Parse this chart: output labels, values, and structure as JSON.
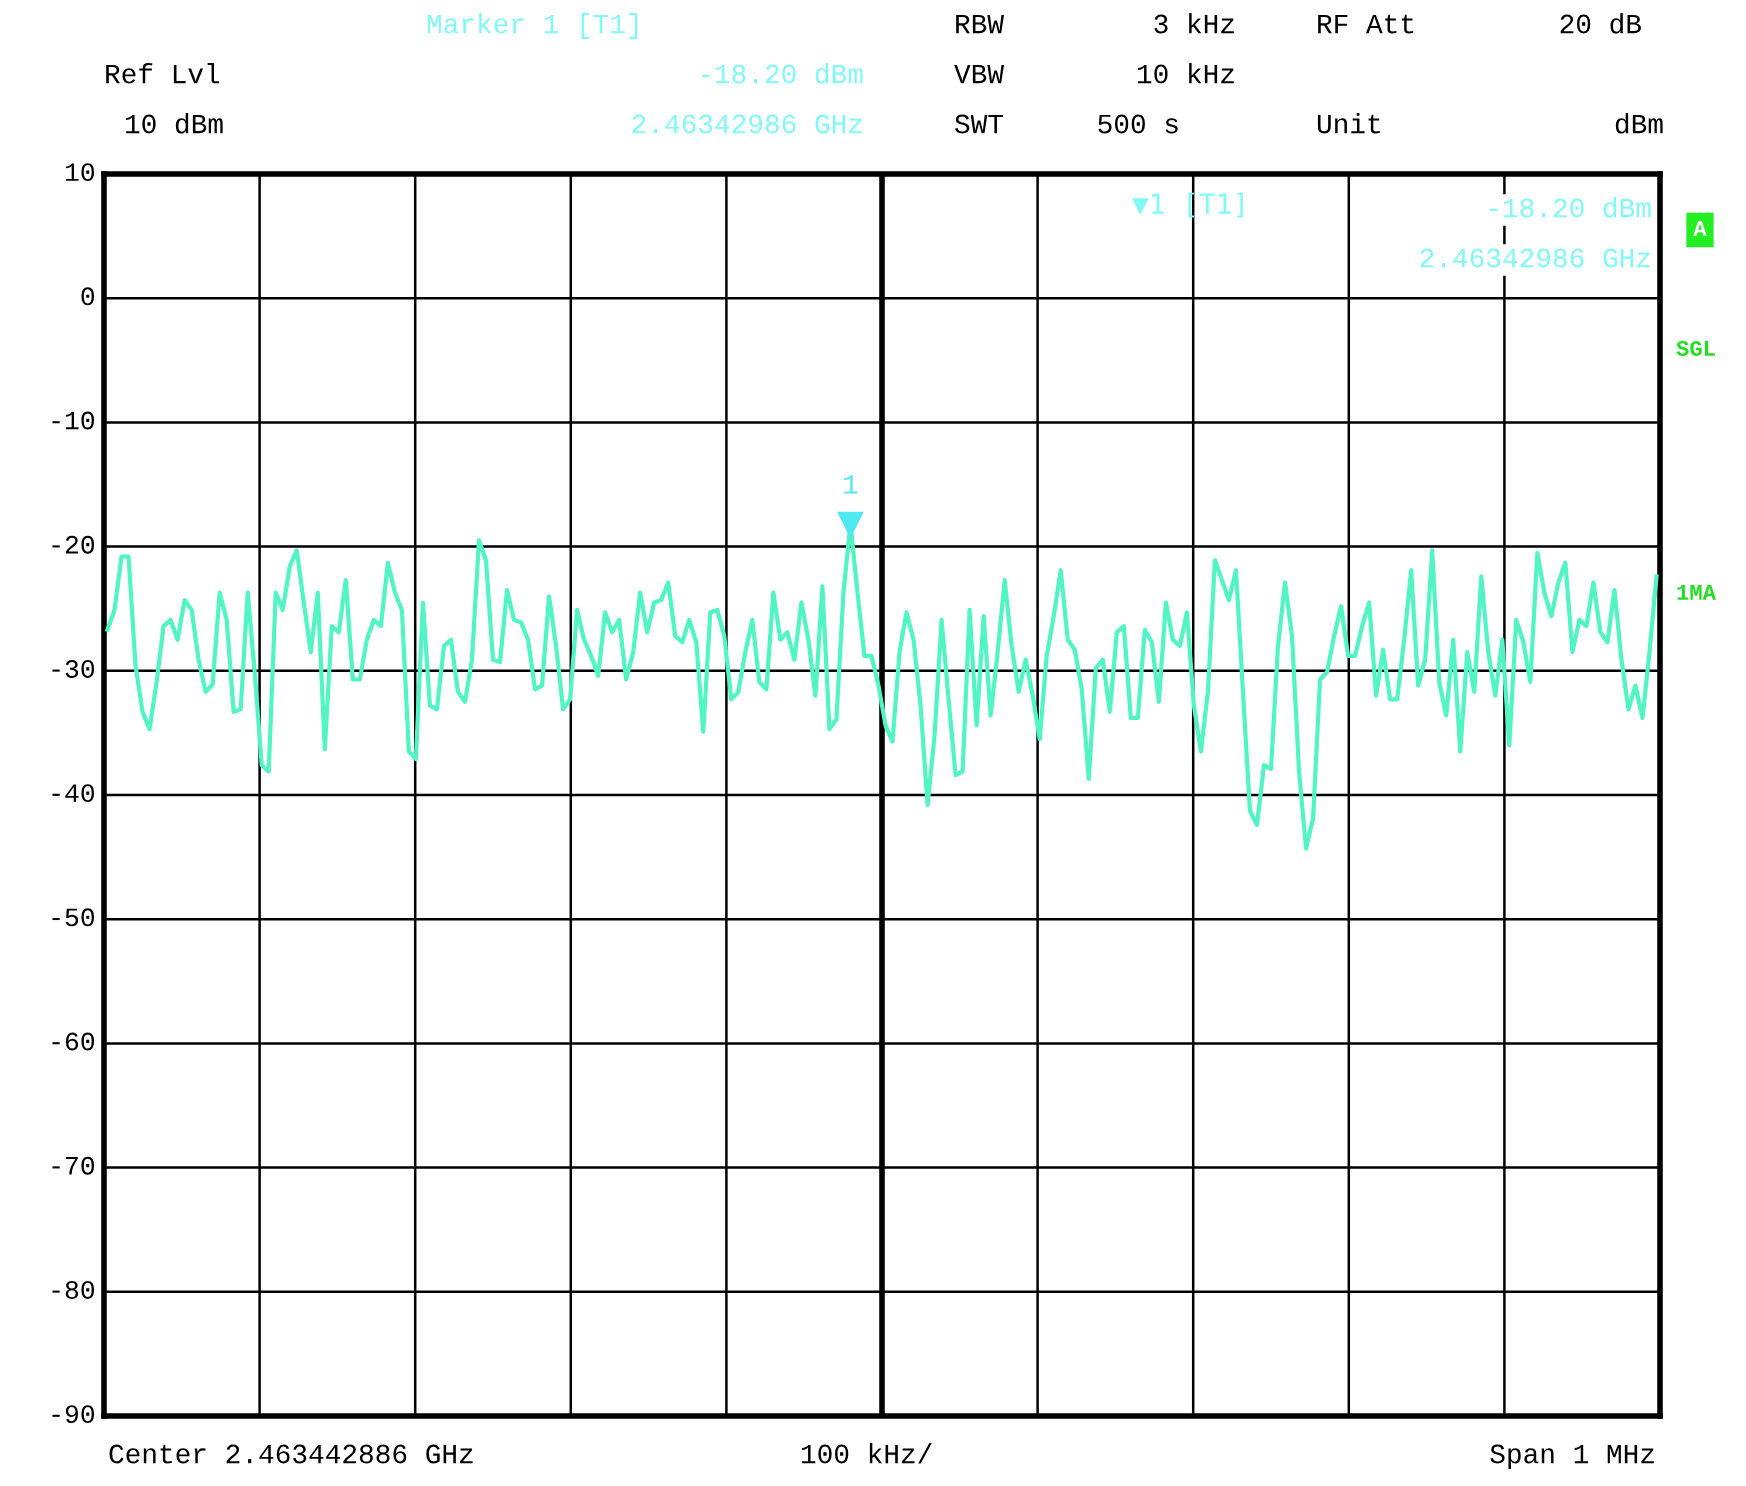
{
  "chart_data": {
    "type": "line",
    "ylim": [
      -90,
      10
    ],
    "yticks": [
      10,
      0,
      -10,
      -20,
      -30,
      -40,
      -50,
      -60,
      -70,
      -80,
      -90
    ],
    "grid": true,
    "tick_labels": "y",
    "line_style": "solid",
    "categories": [
      null,
      null,
      null,
      null,
      null,
      null,
      null,
      null,
      null,
      null,
      null,
      null,
      null,
      null,
      null,
      null,
      null,
      null,
      null,
      null,
      null,
      null,
      null,
      null,
      null,
      null,
      null,
      null,
      null,
      null,
      null,
      null,
      null,
      null,
      null,
      null,
      null,
      null,
      null,
      null,
      null,
      null,
      null,
      null,
      null,
      null,
      null,
      null,
      null,
      null,
      null,
      null,
      null,
      null,
      null,
      null,
      null,
      null,
      null,
      null,
      null,
      null,
      null,
      null,
      null,
      null,
      null,
      null,
      null,
      null,
      null,
      null,
      null,
      null,
      null,
      null,
      null,
      null,
      null,
      null,
      null,
      null,
      null,
      null,
      null,
      null,
      null,
      null,
      null,
      null,
      null,
      null,
      null,
      null,
      null,
      null,
      null,
      null,
      null,
      null,
      null,
      null,
      null,
      null,
      null,
      null,
      null,
      null,
      null,
      null,
      null,
      null,
      null,
      null,
      null,
      null,
      null,
      null,
      null,
      null,
      null,
      null,
      null,
      null,
      null,
      null,
      null,
      null,
      null,
      null,
      null,
      null,
      null,
      null,
      null,
      null,
      null,
      null,
      null,
      null,
      null,
      null,
      null,
      null,
      null,
      null,
      null,
      null,
      null,
      null,
      null,
      null,
      null,
      null,
      null,
      null,
      null,
      null,
      null,
      null,
      null,
      null,
      null,
      null,
      null,
      null,
      null,
      null,
      null,
      null,
      null,
      null,
      null,
      null,
      null,
      null,
      null,
      null,
      null,
      null,
      null,
      null,
      null,
      null,
      null,
      null,
      null,
      null,
      null,
      null,
      null,
      null,
      null,
      null,
      null,
      null,
      null,
      null,
      null,
      null,
      null,
      null,
      null,
      null,
      null,
      null,
      null,
      null,
      null,
      null,
      null,
      null,
      null,
      null,
      null,
      null,
      null,
      null,
      null,
      null,
      null,
      null
    ],
    "series": [
      {
        "color": "#50f5c3",
        "values": [
          -26.7,
          -25.1,
          -20.8,
          -20.8,
          -29.6,
          -33.3,
          -34.7,
          -30.9,
          -26.4,
          -25.9,
          -27.5,
          -24.3,
          -25.1,
          -29.1,
          -31.7,
          -31.1,
          -23.7,
          -25.9,
          -33.3,
          -33.1,
          -23.7,
          -30.1,
          -37.6,
          -38.1,
          -23.7,
          -25.1,
          -21.6,
          -20.3,
          -24.5,
          -28.5,
          -23.7,
          -36.3,
          -26.4,
          -26.9,
          -22.7,
          -30.7,
          -30.7,
          -27.5,
          -25.9,
          -26.4,
          -21.3,
          -23.7,
          -25.1,
          -36.5,
          -37.1,
          -24.5,
          -32.8,
          -33.1,
          -28.0,
          -27.5,
          -31.7,
          -32.5,
          -29.1,
          -19.5,
          -21.1,
          -29.1,
          -29.3,
          -23.5,
          -25.9,
          -26.1,
          -27.5,
          -31.5,
          -31.2,
          -24.0,
          -28.0,
          -33.1,
          -32.3,
          -25.1,
          -27.5,
          -28.8,
          -30.4,
          -25.3,
          -26.9,
          -25.9,
          -30.7,
          -28.5,
          -23.7,
          -26.9,
          -24.5,
          -24.3,
          -22.9,
          -27.2,
          -27.7,
          -25.9,
          -27.7,
          -34.9,
          -25.3,
          -25.1,
          -27.2,
          -32.3,
          -31.7,
          -28.5,
          -25.9,
          -30.9,
          -31.5,
          -23.7,
          -27.5,
          -26.9,
          -29.1,
          -24.5,
          -27.5,
          -32.0,
          -23.2,
          -34.7,
          -33.9,
          -23.7,
          -18.2,
          -23.7,
          -28.8,
          -28.8,
          -31.2,
          -34.4,
          -35.7,
          -28.5,
          -25.3,
          -27.5,
          -32.8,
          -40.8,
          -35.2,
          -25.9,
          -32.3,
          -38.4,
          -38.1,
          -25.1,
          -34.4,
          -25.6,
          -33.6,
          -28.5,
          -22.7,
          -28.0,
          -31.7,
          -29.1,
          -32.0,
          -35.5,
          -28.8,
          -25.6,
          -21.9,
          -27.5,
          -28.3,
          -31.5,
          -38.7,
          -29.8,
          -29.1,
          -33.3,
          -26.9,
          -26.4,
          -33.8,
          -33.8,
          -26.7,
          -27.7,
          -32.5,
          -24.5,
          -27.5,
          -28.0,
          -25.3,
          -32.8,
          -36.5,
          -31.7,
          -21.1,
          -22.7,
          -24.3,
          -21.9,
          -31.7,
          -41.3,
          -42.4,
          -37.6,
          -37.9,
          -28.0,
          -22.9,
          -27.2,
          -38.1,
          -44.3,
          -41.9,
          -30.7,
          -30.1,
          -27.2,
          -24.8,
          -28.8,
          -28.8,
          -26.4,
          -24.5,
          -32.0,
          -28.3,
          -32.3,
          -32.3,
          -27.5,
          -21.9,
          -31.2,
          -29.1,
          -20.3,
          -30.9,
          -33.6,
          -27.5,
          -36.5,
          -28.5,
          -31.7,
          -22.4,
          -28.5,
          -32.0,
          -27.5,
          -36.0,
          -25.9,
          -27.7,
          -30.9,
          -20.5,
          -23.7,
          -25.6,
          -22.9,
          -21.3,
          -28.5,
          -25.9,
          -26.4,
          -22.9,
          -26.9,
          -27.7,
          -23.5,
          -29.1,
          -33.1,
          -31.2,
          -33.8,
          -28.5,
          -22.4
        ]
      }
    ],
    "annotations": [
      "Marker 1 [T1]",
      "-18.20 dBm",
      "2.46342986 GHz",
      "Ref Lvl",
      "10 dBm",
      "RBW",
      "3 kHz",
      "VBW",
      "10 kHz",
      "SWT",
      "500 s",
      "RF Att",
      "20 dB",
      "Unit",
      "dBm",
      "▼1 [T1]",
      "-18.20 dBm",
      "2.46342986 GHz",
      "A",
      "SGL",
      "1MA",
      "Center 2.463442886 GHz",
      "100 kHz/",
      "Span 1 MHz",
      {
        "text": "1",
        "y": -18.2
      }
    ]
  }
}
